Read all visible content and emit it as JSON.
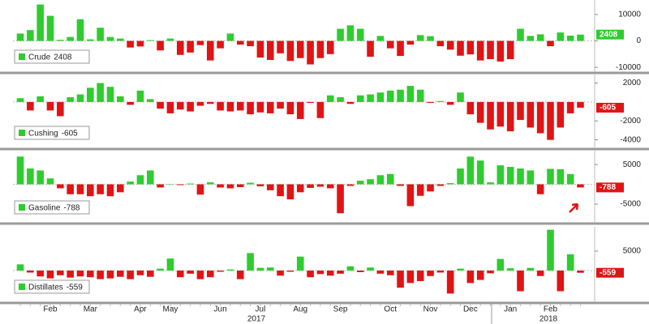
{
  "chart_data": [
    {
      "type": "bar",
      "colors": {
        "positive": "#2fcc2f",
        "negative": "#e01414"
      },
      "ylim": [
        -11500,
        15500
      ],
      "yticks": [
        10000,
        0,
        -10000
      ],
      "series": [
        {
          "name": "Crude",
          "values": [
            2800,
            4100,
            13800,
            9500,
            400,
            1500,
            8200,
            600,
            5000,
            1500,
            900,
            -2500,
            -2100,
            300,
            -3600,
            900,
            -5300,
            -4400,
            -1600,
            -7400,
            -2800,
            2800,
            -1400,
            -2000,
            -6300,
            -7200,
            -4700,
            -7600,
            -6500,
            -8900,
            -6500,
            -5000,
            4600,
            5900,
            4600,
            -6000,
            1900,
            -2800,
            -5700,
            -1400,
            2200,
            1800,
            -2000,
            -3300,
            -5600,
            -5100,
            -7400,
            -6900,
            -7800,
            -6900,
            4600,
            1900,
            2500,
            -2000,
            3200,
            2000,
            2408
          ]
        }
      ]
    },
    {
      "type": "bar",
      "colors": {
        "positive": "#2fcc2f",
        "negative": "#e01414"
      },
      "ylim": [
        -4800,
        2900
      ],
      "yticks": [
        2000,
        -2000,
        -4000
      ],
      "series": [
        {
          "name": "Cushing",
          "values": [
            400,
            -900,
            600,
            -900,
            -1500,
            500,
            800,
            1500,
            2000,
            1600,
            600,
            -300,
            1200,
            300,
            -700,
            -1200,
            -800,
            -1000,
            -400,
            -200,
            -900,
            -1000,
            -900,
            -1300,
            -1100,
            -1200,
            -700,
            -1300,
            -1800,
            -100,
            -1700,
            700,
            500,
            -200,
            700,
            800,
            1000,
            1200,
            1300,
            1700,
            1300,
            -100,
            100,
            -300,
            1000,
            -1300,
            -2200,
            -2900,
            -2600,
            -3100,
            -1900,
            -2700,
            -3300,
            -4000,
            -2700,
            -1200,
            -605
          ]
        }
      ]
    },
    {
      "type": "bar",
      "colors": {
        "positive": "#2fcc2f",
        "negative": "#e01414"
      },
      "ylim": [
        -9500,
        8500
      ],
      "yticks": [
        5000,
        -5000
      ],
      "series": [
        {
          "name": "Gasoline",
          "values": [
            7000,
            4000,
            3500,
            1500,
            -1000,
            -2500,
            -2500,
            -3000,
            -2500,
            -3000,
            -2000,
            700,
            2300,
            3500,
            -800,
            0,
            -200,
            200,
            -2600,
            500,
            -800,
            -1000,
            -700,
            400,
            -500,
            -1500,
            -3000,
            -3800,
            -2000,
            -900,
            -600,
            -1000,
            -7300,
            -400,
            900,
            1300,
            2300,
            2600,
            -400,
            -5500,
            -2900,
            -1800,
            -400,
            300,
            4000,
            7000,
            6000,
            500,
            4800,
            4400,
            4000,
            3500,
            -2500,
            3900,
            3800,
            2600,
            -788
          ]
        }
      ]
    },
    {
      "type": "bar",
      "colors": {
        "positive": "#2fcc2f",
        "negative": "#e01414"
      },
      "ylim": [
        -7900,
        11250
      ],
      "yticks": [
        5000
      ],
      "series": [
        {
          "name": "Distillates",
          "values": [
            1600,
            -500,
            -1500,
            -2000,
            -1200,
            -1800,
            -1500,
            -1700,
            -2200,
            -2000,
            -1600,
            -2200,
            -1200,
            -1600,
            500,
            3100,
            -1700,
            -800,
            -2200,
            -1700,
            -300,
            300,
            -2200,
            4500,
            700,
            800,
            -1300,
            -300,
            3600,
            -1700,
            -900,
            -1300,
            -800,
            1100,
            -400,
            800,
            -800,
            -1200,
            -4400,
            -3200,
            -2700,
            -1400,
            -500,
            -5900,
            500,
            -3200,
            -2400,
            -700,
            3000,
            600,
            -5300,
            700,
            -1400,
            10500,
            -5300,
            4200,
            -559
          ]
        }
      ],
      "categories": [
        null,
        null,
        null,
        "Feb",
        null,
        null,
        null,
        "Mar",
        null,
        null,
        null,
        null,
        "Apr",
        null,
        null,
        "May",
        null,
        null,
        null,
        null,
        "Jun",
        null,
        null,
        null,
        "Jul",
        null,
        null,
        null,
        "Aug",
        null,
        null,
        null,
        "Sep",
        null,
        null,
        null,
        null,
        "Oct",
        null,
        null,
        null,
        "Nov",
        null,
        null,
        null,
        "Dec",
        null,
        null,
        null,
        "Jan",
        null,
        null,
        null,
        "Feb",
        null,
        null,
        null
      ],
      "year_labels": [
        "2017",
        "2018"
      ]
    }
  ]
}
